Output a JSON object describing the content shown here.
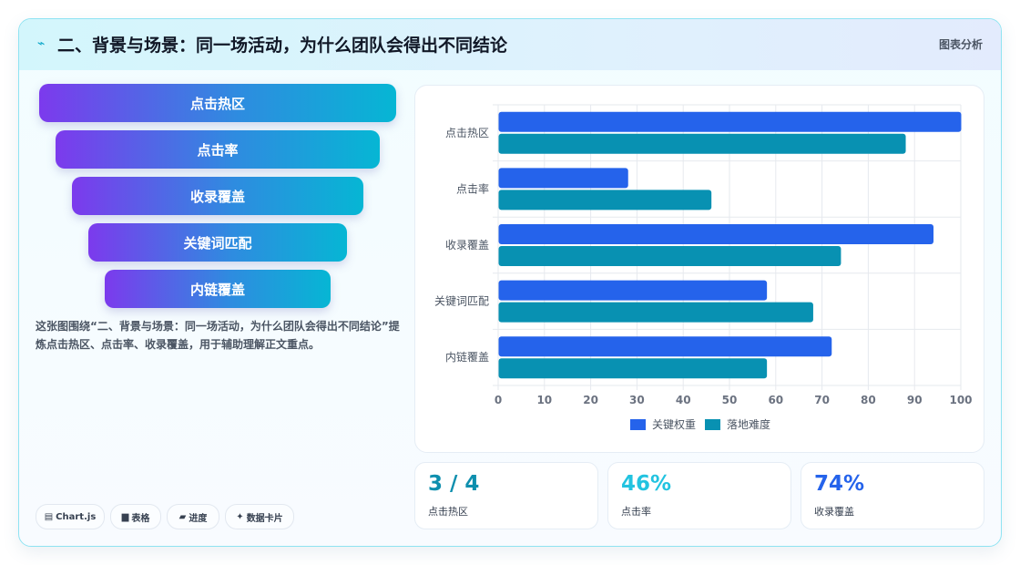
{
  "header": {
    "title": "二、背景与场景：同一场活动，为什么团队会得出不同结论",
    "tag": "图表分析",
    "icon": "bolt-icon"
  },
  "funnel": {
    "items": [
      "点击热区",
      "点击率",
      "收录覆盖",
      "关键词匹配",
      "内链覆盖"
    ]
  },
  "description": "这张图围绕“二、背景与场景：同一场活动，为什么团队会得出不同结论”提炼点击热区、点击率、收录覆盖，用于辅助理解正文重点。",
  "chips": [
    {
      "icon": "chart-icon",
      "label": "Chart.js"
    },
    {
      "icon": "table-icon",
      "label": "表格"
    },
    {
      "icon": "progress-icon",
      "label": "进度"
    },
    {
      "icon": "sparkle-icon",
      "label": "数据卡片"
    }
  ],
  "stats": [
    {
      "value": "3 / 4",
      "label": "点击热区",
      "color": "#0e8fae"
    },
    {
      "value": "46%",
      "label": "点击率",
      "color": "#22c3e0"
    },
    {
      "value": "74%",
      "label": "收录覆盖",
      "color": "#2563eb"
    }
  ],
  "chart_data": {
    "type": "bar",
    "orientation": "horizontal",
    "categories": [
      "点击热区",
      "点击率",
      "收录覆盖",
      "关键词匹配",
      "内链覆盖"
    ],
    "series": [
      {
        "name": "关键权重",
        "values": [
          100,
          28,
          94,
          58,
          72
        ],
        "color": "#2563eb"
      },
      {
        "name": "落地难度",
        "values": [
          88,
          46,
          74,
          68,
          58
        ],
        "color": "#0891b2"
      }
    ],
    "xlim": [
      0,
      100
    ],
    "xticks": [
      0,
      10,
      20,
      30,
      40,
      50,
      60,
      70,
      80,
      90,
      100
    ],
    "grid": true,
    "legend": "bottom"
  }
}
